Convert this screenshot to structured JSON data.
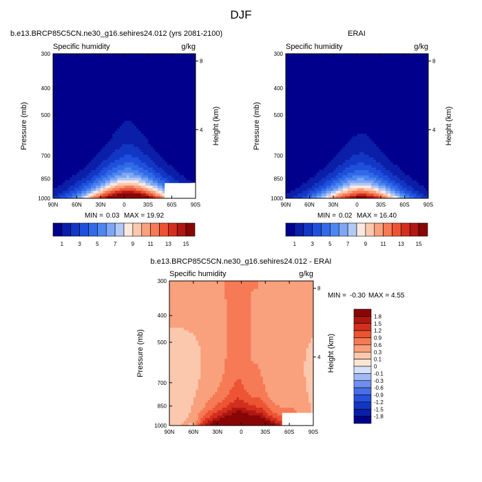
{
  "page": {
    "title": "DJF"
  },
  "colors": {
    "abs_levels": [
      "#00008c",
      "#0b1ea8",
      "#1237c4",
      "#1e50dc",
      "#326ae6",
      "#4d86f0",
      "#7ea6f5",
      "#b2c9f8",
      "#fbe9df",
      "#fbc8ae",
      "#f9a07c",
      "#f57a55",
      "#ec5434",
      "#d32f1e",
      "#ae1712",
      "#880606"
    ],
    "diff_levels": [
      "#00008c",
      "#0b1ea8",
      "#1237c4",
      "#2750dc",
      "#4a6ee6",
      "#6f8eef",
      "#a3b9f5",
      "#d4e1fa",
      "#fde5d4",
      "#fbc8ae",
      "#f9a07c",
      "#f57a55",
      "#ec5434",
      "#d32f1e",
      "#ae1712",
      "#880606"
    ]
  },
  "chart_data": [
    {
      "type": "heatmap",
      "title": "b.e13.BRCP85C5CN.ne30_g16.sehires24.012 (yrs 2081-2100)",
      "left_subtitle": "Specific humidity",
      "right_subtitle": "g/kg",
      "ylabel": "Pressure (mb)",
      "ylabel_right": "Height (km)",
      "x_ticks": [
        "90N",
        "60N",
        "30N",
        "0",
        "30S",
        "60S",
        "90S"
      ],
      "y_ticks": [
        "300",
        "400",
        "500",
        "700",
        "850",
        "1000"
      ],
      "y_right_ticks": [
        "8",
        "4"
      ],
      "ylim": [
        1000,
        300
      ],
      "xlim": [
        90,
        -90
      ],
      "stats": {
        "min_label": "MIN =",
        "min": "0.03",
        "max_label": "MAX =",
        "max": "19.92"
      },
      "colorbar": {
        "labels": [
          "1",
          "3",
          "5",
          "7",
          "9",
          "11",
          "13",
          "15"
        ]
      },
      "field": {
        "peak": 19.92,
        "center_lat": -5,
        "base_halfwidth": 62,
        "scale_height_mb": 160,
        "topo_pressure": 880,
        "topo_lat_range": [
          -50,
          -90
        ]
      }
    },
    {
      "type": "heatmap",
      "title": "ERAI",
      "left_subtitle": "Specific humidity",
      "right_subtitle": "g/kg",
      "ylabel": "Pressure (mb)",
      "ylabel_right": "Height (km)",
      "x_ticks": [
        "90N",
        "60N",
        "30N",
        "0",
        "30S",
        "60S",
        "90S"
      ],
      "y_ticks": [
        "300",
        "400",
        "500",
        "700",
        "850",
        "1000"
      ],
      "y_right_ticks": [
        "8",
        "4"
      ],
      "ylim": [
        1000,
        300
      ],
      "xlim": [
        90,
        -90
      ],
      "stats": {
        "min_label": "MIN =",
        "min": "0.02",
        "max_label": "MAX =",
        "max": "16.40"
      },
      "colorbar": {
        "labels": [
          "1",
          "3",
          "5",
          "7",
          "9",
          "11",
          "13",
          "15"
        ]
      },
      "field": {
        "peak": 16.4,
        "center_lat": -5,
        "base_halfwidth": 58,
        "scale_height_mb": 150
      }
    },
    {
      "type": "heatmap",
      "title": "b.e13.BRCP85C5CN.ne30_g16.sehires24.012 - ERAI",
      "left_subtitle": "Specific humidity",
      "right_subtitle": "g/kg",
      "ylabel": "Pressure (mb)",
      "ylabel_right": "Height (km)",
      "x_ticks": [
        "90N",
        "60N",
        "30N",
        "0",
        "30S",
        "60S",
        "90S"
      ],
      "y_ticks": [
        "300",
        "400",
        "500",
        "700",
        "850",
        "1000"
      ],
      "y_right_ticks": [
        "8",
        "4"
      ],
      "ylim": [
        1000,
        300
      ],
      "xlim": [
        90,
        -90
      ],
      "stats": {
        "min_label": "MIN =",
        "min": "-0.30",
        "max_label": "MAX =",
        "max": "4.55"
      },
      "colorbar": {
        "labels": [
          "1.8",
          "1.5",
          "1.2",
          "0.9",
          "0.6",
          "0.3",
          "0.1",
          "0",
          "-0.1",
          "-0.3",
          "-0.6",
          "-0.9",
          "-1.2",
          "-1.5",
          "-1.8"
        ]
      },
      "field": {
        "max": 4.55,
        "min": -0.3,
        "topo_pressure": 890,
        "topo_lat_range": [
          -52,
          -90
        ]
      }
    }
  ]
}
